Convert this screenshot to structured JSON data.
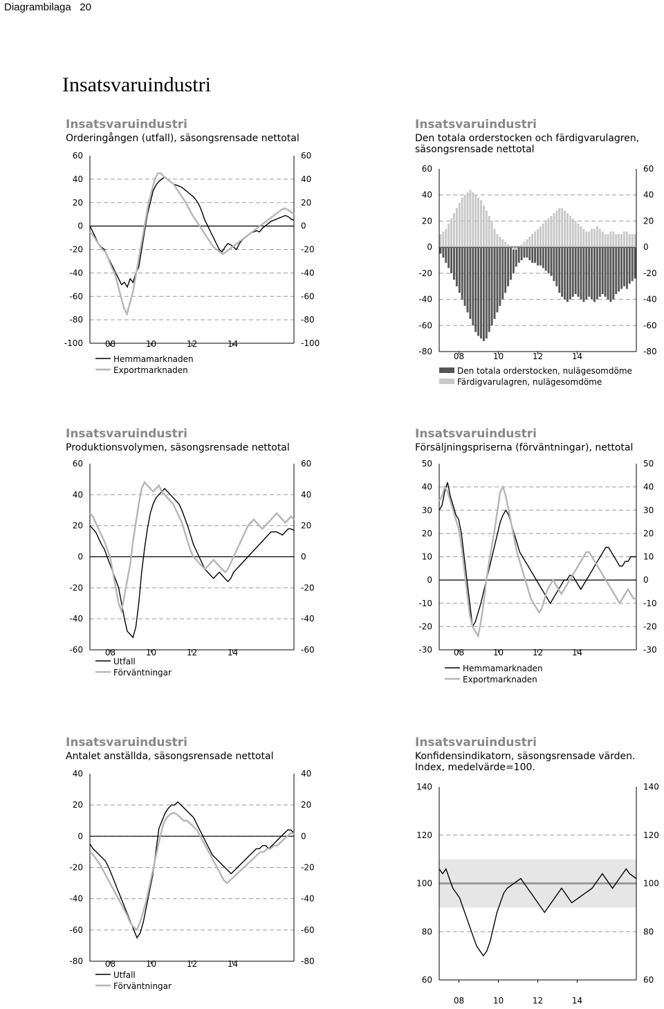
{
  "header": {
    "label": "Diagrambilaga",
    "page": "20"
  },
  "page_title": "Insatsvaruindustri",
  "chart_data": [
    {
      "id": "c1",
      "type": "line",
      "title": "Insatsvaruindustri",
      "subtitle": "Orderingången (utfall), säsongsrensade nettotal",
      "ylim": [
        -100,
        60
      ],
      "yticks": [
        "60",
        "40",
        "20",
        "0",
        "-20",
        "-40",
        "-60",
        "-80",
        "-100"
      ],
      "xticks": [
        "08",
        "10",
        "12",
        "14"
      ],
      "series": [
        {
          "name": "Hemmamarknaden",
          "color": "#000000",
          "values": [
            0,
            -5,
            -10,
            -15,
            -18,
            -20,
            -25,
            -30,
            -35,
            -40,
            -45,
            -50,
            -48,
            -52,
            -45,
            -48,
            -40,
            -35,
            -20,
            -5,
            10,
            20,
            30,
            35,
            38,
            40,
            42,
            40,
            38,
            36,
            35,
            34,
            33,
            31,
            29,
            27,
            25,
            22,
            18,
            12,
            5,
            0,
            -5,
            -10,
            -15,
            -20,
            -22,
            -18,
            -15,
            -16,
            -18,
            -20,
            -15,
            -12,
            -10,
            -8,
            -6,
            -5,
            -4,
            -5,
            -2,
            0,
            2,
            4,
            5,
            6,
            7,
            8,
            9,
            8,
            6,
            5
          ]
        },
        {
          "name": "Exportmarknaden",
          "color": "#b5b5b5",
          "values": [
            -5,
            -8,
            -12,
            -16,
            -20,
            -22,
            -28,
            -35,
            -40,
            -50,
            -60,
            -70,
            -75,
            -65,
            -55,
            -40,
            -25,
            -10,
            5,
            20,
            30,
            40,
            45,
            45,
            42,
            40,
            38,
            36,
            32,
            28,
            24,
            20,
            15,
            10,
            6,
            2,
            -2,
            -6,
            -10,
            -14,
            -18,
            -20,
            -22,
            -24,
            -22,
            -20,
            -18,
            -16,
            -14,
            -12,
            -10,
            -8,
            -6,
            -4,
            -2,
            0,
            2,
            4,
            6,
            8,
            10,
            12,
            14,
            15,
            14,
            12,
            10
          ]
        }
      ]
    },
    {
      "id": "c2",
      "type": "bar",
      "title": "Insatsvaruindustri",
      "subtitle": "Den totala orderstocken och färdigvarulagren, säsongsrensade nettotal",
      "ylim": [
        -80,
        60
      ],
      "yticks": [
        "60",
        "40",
        "20",
        "0",
        "-20",
        "-40",
        "-60",
        "-80"
      ],
      "xticks": [
        "08",
        "10",
        "12",
        "14"
      ],
      "series": [
        {
          "name": "Den totala orderstocken, nulägesomdöme",
          "color": "#555555",
          "values": [
            -5,
            -8,
            -12,
            -16,
            -20,
            -25,
            -30,
            -35,
            -40,
            -45,
            -50,
            -55,
            -60,
            -65,
            -68,
            -70,
            -72,
            -70,
            -65,
            -60,
            -55,
            -50,
            -45,
            -40,
            -35,
            -30,
            -25,
            -20,
            -15,
            -12,
            -10,
            -8,
            -8,
            -10,
            -12,
            -12,
            -14,
            -14,
            -16,
            -18,
            -20,
            -22,
            -26,
            -30,
            -35,
            -38,
            -40,
            -42,
            -40,
            -38,
            -36,
            -38,
            -40,
            -42,
            -40,
            -38,
            -40,
            -42,
            -40,
            -38,
            -36,
            -38,
            -40,
            -42,
            -40,
            -36,
            -34,
            -32,
            -30,
            -32,
            -28,
            -26,
            -24
          ]
        },
        {
          "name": "Färdigvarulagren, nulägesomdöme",
          "color": "#c8c8c8",
          "values": [
            10,
            12,
            14,
            18,
            22,
            26,
            30,
            34,
            38,
            40,
            42,
            44,
            42,
            40,
            38,
            36,
            32,
            28,
            24,
            20,
            14,
            10,
            8,
            6,
            4,
            2,
            0,
            -2,
            -2,
            0,
            2,
            4,
            6,
            8,
            10,
            12,
            14,
            16,
            18,
            20,
            22,
            24,
            26,
            28,
            30,
            30,
            28,
            26,
            24,
            22,
            20,
            18,
            16,
            14,
            12,
            12,
            14,
            14,
            16,
            14,
            12,
            10,
            10,
            12,
            12,
            10,
            10,
            10,
            12,
            12,
            10,
            10,
            10
          ]
        }
      ]
    },
    {
      "id": "c3",
      "type": "line",
      "title": "Insatsvaruindustri",
      "subtitle": "Produktionsvolymen, säsongsrensade nettotal",
      "ylim": [
        -60,
        60
      ],
      "yticks": [
        "60",
        "40",
        "20",
        "0",
        "-20",
        "-40",
        "-60"
      ],
      "xticks": [
        "08",
        "10",
        "12",
        "14"
      ],
      "series": [
        {
          "name": "Utfall",
          "color": "#000000",
          "values": [
            20,
            18,
            16,
            12,
            8,
            5,
            0,
            -5,
            -10,
            -15,
            -20,
            -30,
            -40,
            -48,
            -50,
            -52,
            -45,
            -30,
            -10,
            5,
            18,
            28,
            34,
            38,
            40,
            42,
            44,
            42,
            40,
            38,
            36,
            34,
            30,
            25,
            20,
            14,
            8,
            4,
            0,
            -4,
            -8,
            -10,
            -12,
            -14,
            -12,
            -10,
            -12,
            -14,
            -16,
            -14,
            -10,
            -8,
            -6,
            -4,
            -2,
            0,
            2,
            4,
            6,
            8,
            10,
            12,
            14,
            16,
            16,
            16,
            15,
            14,
            16,
            18,
            18,
            17
          ]
        },
        {
          "name": "Förväntningar",
          "color": "#b5b5b5",
          "values": [
            28,
            26,
            22,
            18,
            14,
            10,
            5,
            0,
            -10,
            -20,
            -30,
            -35,
            -25,
            -15,
            -5,
            10,
            22,
            34,
            44,
            48,
            46,
            44,
            42,
            44,
            46,
            42,
            40,
            38,
            36,
            34,
            30,
            26,
            22,
            16,
            10,
            4,
            0,
            -2,
            -4,
            -6,
            -8,
            -6,
            -4,
            -2,
            -4,
            -6,
            -8,
            -10,
            -8,
            -4,
            0,
            4,
            8,
            12,
            16,
            20,
            22,
            24,
            22,
            20,
            18,
            20,
            22,
            24,
            26,
            28,
            26,
            24,
            22,
            24,
            26,
            24
          ]
        }
      ]
    },
    {
      "id": "c4",
      "type": "line",
      "title": "Insatsvaruindustri",
      "subtitle": "Försäljningspriserna (förväntningar), nettotal",
      "ylim": [
        -30,
        50
      ],
      "yticks": [
        "50",
        "40",
        "30",
        "20",
        "10",
        "0",
        "-10",
        "-20",
        "-30"
      ],
      "xticks": [
        "08",
        "10",
        "12",
        "14"
      ],
      "series": [
        {
          "name": "Hemmamarknaden",
          "color": "#000000",
          "values": [
            30,
            32,
            38,
            42,
            36,
            32,
            28,
            26,
            20,
            10,
            0,
            -10,
            -20,
            -18,
            -14,
            -10,
            -5,
            0,
            5,
            10,
            15,
            20,
            25,
            28,
            30,
            28,
            24,
            20,
            16,
            12,
            10,
            8,
            6,
            4,
            2,
            0,
            -2,
            -4,
            -6,
            -8,
            -10,
            -8,
            -6,
            -4,
            -2,
            0,
            0,
            2,
            2,
            0,
            -2,
            -4,
            -2,
            0,
            2,
            4,
            6,
            8,
            10,
            12,
            14,
            14,
            12,
            10,
            8,
            6,
            6,
            8,
            8,
            10,
            10,
            10
          ]
        },
        {
          "name": "Exportmarknaden",
          "color": "#b5b5b5",
          "values": [
            34,
            36,
            40,
            38,
            34,
            30,
            26,
            22,
            15,
            5,
            -5,
            -15,
            -20,
            -22,
            -24,
            -18,
            -10,
            0,
            8,
            15,
            22,
            30,
            38,
            40,
            36,
            30,
            24,
            18,
            12,
            8,
            4,
            0,
            -4,
            -8,
            -10,
            -12,
            -14,
            -12,
            -8,
            -4,
            -2,
            0,
            -2,
            -4,
            -6,
            -4,
            -2,
            0,
            2,
            4,
            6,
            8,
            10,
            12,
            12,
            10,
            8,
            6,
            4,
            2,
            0,
            -2,
            -4,
            -6,
            -8,
            -10,
            -8,
            -6,
            -4,
            -6,
            -8,
            -8
          ]
        }
      ]
    },
    {
      "id": "c5",
      "type": "line",
      "title": "Insatsvaruindustri",
      "subtitle": "Antalet anställda, säsongsrensade nettotal",
      "ylim": [
        -80,
        40
      ],
      "yticks": [
        "40",
        "20",
        "0",
        "-20",
        "-40",
        "-60",
        "-80"
      ],
      "xticks": [
        "08",
        "10",
        "12",
        "14"
      ],
      "series": [
        {
          "name": "Utfall",
          "color": "#000000",
          "values": [
            -5,
            -8,
            -10,
            -12,
            -14,
            -16,
            -20,
            -25,
            -30,
            -35,
            -40,
            -45,
            -50,
            -55,
            -60,
            -65,
            -62,
            -55,
            -45,
            -35,
            -25,
            -10,
            5,
            10,
            15,
            18,
            20,
            20,
            22,
            20,
            18,
            16,
            14,
            12,
            8,
            4,
            0,
            -4,
            -8,
            -12,
            -14,
            -16,
            -18,
            -20,
            -22,
            -24,
            -22,
            -20,
            -18,
            -16,
            -14,
            -12,
            -10,
            -8,
            -8,
            -6,
            -6,
            -8,
            -6,
            -4,
            -2,
            0,
            2,
            4,
            4,
            2
          ]
        },
        {
          "name": "Förväntningar",
          "color": "#b5b5b5",
          "values": [
            -10,
            -12,
            -15,
            -18,
            -22,
            -26,
            -30,
            -34,
            -38,
            -42,
            -46,
            -50,
            -55,
            -58,
            -60,
            -55,
            -48,
            -40,
            -30,
            -20,
            -10,
            0,
            8,
            12,
            14,
            15,
            14,
            12,
            10,
            10,
            8,
            6,
            4,
            0,
            -4,
            -8,
            -12,
            -16,
            -20,
            -24,
            -28,
            -30,
            -28,
            -26,
            -24,
            -22,
            -20,
            -18,
            -16,
            -14,
            -12,
            -10,
            -10,
            -8,
            -8,
            -6,
            -6,
            -4,
            -2,
            0,
            2,
            2
          ]
        }
      ]
    },
    {
      "id": "c6",
      "type": "line",
      "title": "Insatsvaruindustri",
      "subtitle": "Konfidensindikatorn, säsongsrensade värden. Index, medelvärde=100.",
      "ylim": [
        60,
        140
      ],
      "yticks": [
        "140",
        "120",
        "100",
        "80",
        "60"
      ],
      "xticks": [
        "08",
        "10",
        "12",
        "14"
      ],
      "band": [
        90,
        110
      ],
      "refline": 100,
      "series": [
        {
          "name": "",
          "color": "#000000",
          "values": [
            106,
            104,
            106,
            102,
            98,
            96,
            94,
            90,
            86,
            82,
            78,
            74,
            72,
            70,
            72,
            76,
            82,
            88,
            92,
            96,
            98,
            99,
            100,
            101,
            102,
            100,
            98,
            96,
            94,
            92,
            90,
            88,
            90,
            92,
            94,
            96,
            98,
            96,
            94,
            92,
            93,
            94,
            95,
            96,
            97,
            98,
            100,
            102,
            104,
            102,
            100,
            98,
            100,
            102,
            104,
            106,
            104,
            103,
            102
          ]
        }
      ]
    }
  ]
}
